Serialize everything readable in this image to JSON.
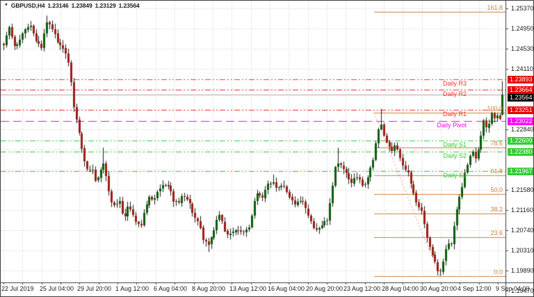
{
  "window": {
    "symbol_period": "GBPUSD,H4",
    "ohlc": {
      "open": "1.23146",
      "high": "1.23849",
      "low": "1.23129",
      "close": "1.23564"
    },
    "dropdown_icon": "▼"
  },
  "colors": {
    "background": "#ffffff",
    "grid": "#cdcdcd",
    "axis_border": "#3c3c3c",
    "axis_text": "#1a1a1a",
    "bull": "#0a5c0a",
    "bear": "#9e1b12",
    "wick": "#1c1c1c",
    "pivot_r": "#ff3232",
    "pivot_p": "#ff00ff",
    "pivot_s": "#32cd32",
    "fib": "#c88440",
    "fib_diagonal": "#f28b8b",
    "price_line": "#a6a6a6",
    "badge_red": "#e60000",
    "badge_magenta": "#ff00ff",
    "badge_green": "#32cd32",
    "badge_black": "#000000"
  },
  "chart_data": {
    "type": "candlestick",
    "symbol": "GBPUSD",
    "timeframe": "H4",
    "last_bar": {
      "open": 1.23146,
      "high": 1.23849,
      "low": 1.23129,
      "close": 1.23564
    },
    "y_axis": {
      "ylim": [
        1.1947,
        1.2537
      ],
      "ticks": [
        {
          "label": "1.25370",
          "price": 1.2537
        },
        {
          "label": "1.24950",
          "price": 1.2495
        },
        {
          "label": "1.24530",
          "price": 1.2453
        },
        {
          "label": "1.24110",
          "price": 1.2411
        },
        {
          "label": "1.22840",
          "price": 1.2284
        },
        {
          "label": "1.21580",
          "price": 1.2158
        },
        {
          "label": "1.21160",
          "price": 1.2116
        },
        {
          "label": "1.20740",
          "price": 1.2074
        },
        {
          "label": "1.20310",
          "price": 1.2031
        },
        {
          "label": "1.19890",
          "price": 1.1989
        },
        {
          "label": "1.19470",
          "price": 1.1947
        }
      ],
      "grid_prices": [
        1.2537,
        1.2495,
        1.2453,
        1.2411,
        1.2369,
        1.2327,
        1.2284,
        1.2242,
        1.22,
        1.2158,
        1.2116,
        1.2074,
        1.2031,
        1.1989,
        1.1947
      ]
    },
    "x_axis": {
      "labels": [
        "22 Jul 2019",
        "25 Jul 04:00",
        "29 Jul 20:00",
        "1 Aug 12:00",
        "6 Aug 04:00",
        "8 Aug 20:00",
        "13 Aug 12:00",
        "16 Aug 04:00",
        "20 Aug 20:00",
        "23 Aug 12:00",
        "28 Aug 04:00",
        "30 Aug 20:00",
        "4 Sep 12:00",
        "9 Sep 04:00"
      ],
      "grid_on": true
    },
    "badges": [
      {
        "text": "1.23893",
        "price": 1.23893,
        "color_key": "badge_red"
      },
      {
        "text": "1.23664",
        "price": 1.23664,
        "color_key": "badge_red"
      },
      {
        "text": "1.23564",
        "price": 1.23564,
        "color_key": "badge_black",
        "role": "last-price"
      },
      {
        "text": "1.23251",
        "price": 1.23251,
        "color_key": "badge_red"
      },
      {
        "text": "1.23022",
        "price": 1.23022,
        "color_key": "badge_magenta"
      },
      {
        "text": "1.22609",
        "price": 1.22609,
        "color_key": "badge_green"
      },
      {
        "text": "1.22380",
        "price": 1.2238,
        "color_key": "badge_green"
      },
      {
        "text": "1.21967",
        "price": 1.21967,
        "color_key": "badge_green"
      }
    ],
    "levels": {
      "pivots": [
        {
          "label": "Daily R3",
          "price": 1.23893,
          "color_key": "pivot_r"
        },
        {
          "label": "Daily R2",
          "price": 1.23664,
          "color_key": "pivot_r"
        },
        {
          "label": "Daily R1",
          "price": 1.23251,
          "color_key": "pivot_r"
        },
        {
          "label": "Daily Pivot",
          "price": 1.23022,
          "color_key": "pivot_p"
        },
        {
          "label": "Daily S1",
          "price": 1.22609,
          "color_key": "pivot_s"
        },
        {
          "label": "Daily S2",
          "price": 1.2238,
          "color_key": "pivot_s"
        },
        {
          "label": "Daily S3",
          "price": 1.21967,
          "color_key": "pivot_s"
        }
      ],
      "price_line": {
        "price": 1.23564
      },
      "fibonacci": {
        "x_start": 537,
        "x_end": 726,
        "anchor_high": {
          "x": 537,
          "price": 1.2319
        },
        "anchor_low": {
          "x": 631,
          "price": 1.1978
        },
        "levels": [
          {
            "label": "161.8",
            "price": 1.25297
          },
          {
            "label": "100.0",
            "price": 1.2319
          },
          {
            "label": "78.6",
            "price": 1.2246
          },
          {
            "label": "61.8",
            "price": 1.21888
          },
          {
            "label": "50.0",
            "price": 1.21485
          },
          {
            "label": "38.2",
            "price": 1.21083
          },
          {
            "label": "23.6",
            "price": 1.20585
          },
          {
            "label": "0.0",
            "price": 1.1978
          }
        ]
      }
    },
    "candles": {
      "count": 186,
      "x_first": 4,
      "x_step": 3.878,
      "noise": 0.0009,
      "seed": 9,
      "close_waypoints": [
        [
          4,
          1.2462
        ],
        [
          12,
          1.2495
        ],
        [
          20,
          1.2452
        ],
        [
          28,
          1.247
        ],
        [
          36,
          1.2498
        ],
        [
          43,
          1.2505
        ],
        [
          50,
          1.2472
        ],
        [
          58,
          1.2455
        ],
        [
          63,
          1.249
        ],
        [
          67,
          1.2512
        ],
        [
          72,
          1.2498
        ],
        [
          78,
          1.2482
        ],
        [
          84,
          1.2462
        ],
        [
          90,
          1.245
        ],
        [
          96,
          1.244
        ],
        [
          101,
          1.238
        ],
        [
          105,
          1.233
        ],
        [
          110,
          1.23
        ],
        [
          116,
          1.2248
        ],
        [
          121,
          1.221
        ],
        [
          126,
          1.219
        ],
        [
          131,
          1.2208
        ],
        [
          137,
          1.2175
        ],
        [
          142,
          1.2195
        ],
        [
          147,
          1.222
        ],
        [
          152,
          1.2178
        ],
        [
          158,
          1.2135
        ],
        [
          164,
          1.212
        ],
        [
          170,
          1.214
        ],
        [
          176,
          1.2098
        ],
        [
          182,
          1.212
        ],
        [
          188,
          1.2112
        ],
        [
          194,
          1.2092
        ],
        [
          200,
          1.2078
        ],
        [
          206,
          1.211
        ],
        [
          212,
          1.2142
        ],
        [
          218,
          1.2135
        ],
        [
          224,
          1.2152
        ],
        [
          230,
          1.2165
        ],
        [
          237,
          1.2172
        ],
        [
          244,
          1.2158
        ],
        [
          250,
          1.2128
        ],
        [
          256,
          1.2135
        ],
        [
          262,
          1.2148
        ],
        [
          268,
          1.2135
        ],
        [
          274,
          1.2118
        ],
        [
          280,
          1.21
        ],
        [
          286,
          1.2082
        ],
        [
          292,
          1.2052
        ],
        [
          298,
          1.2043
        ],
        [
          304,
          1.206
        ],
        [
          310,
          1.2092
        ],
        [
          316,
          1.2105
        ],
        [
          322,
          1.207
        ],
        [
          328,
          1.2058
        ],
        [
          334,
          1.2072
        ],
        [
          340,
          1.2078
        ],
        [
          346,
          1.2068
        ],
        [
          352,
          1.2075
        ],
        [
          358,
          1.2085
        ],
        [
          364,
          1.213
        ],
        [
          369,
          1.2152
        ],
        [
          375,
          1.214
        ],
        [
          381,
          1.2158
        ],
        [
          387,
          1.2175
        ],
        [
          393,
          1.217
        ],
        [
          399,
          1.2162
        ],
        [
          405,
          1.2172
        ],
        [
          411,
          1.2155
        ],
        [
          417,
          1.2135
        ],
        [
          423,
          1.2126
        ],
        [
          429,
          1.214
        ],
        [
          435,
          1.2132
        ],
        [
          441,
          1.211
        ],
        [
          447,
          1.2088
        ],
        [
          452,
          1.2072
        ],
        [
          458,
          1.208
        ],
        [
          464,
          1.2085
        ],
        [
          470,
          1.2095
        ],
        [
          476,
          1.216
        ],
        [
          481,
          1.2205
        ],
        [
          486,
          1.2218
        ],
        [
          492,
          1.22
        ],
        [
          498,
          1.2192
        ],
        [
          504,
          1.217
        ],
        [
          510,
          1.2182
        ],
        [
          516,
          1.2178
        ],
        [
          522,
          1.2164
        ],
        [
          528,
          1.2188
        ],
        [
          534,
          1.221
        ],
        [
          540,
          1.2258
        ],
        [
          545,
          1.2302
        ],
        [
          550,
          1.2272
        ],
        [
          556,
          1.225
        ],
        [
          562,
          1.224
        ],
        [
          568,
          1.2256
        ],
        [
          574,
          1.2224
        ],
        [
          580,
          1.2204
        ],
        [
          586,
          1.2192
        ],
        [
          592,
          1.2155
        ],
        [
          598,
          1.2128
        ],
        [
          604,
          1.212
        ],
        [
          610,
          1.2075
        ],
        [
          615,
          1.205
        ],
        [
          620,
          1.2028
        ],
        [
          625,
          1.2
        ],
        [
          630,
          1.1988
        ],
        [
          634,
          1.1992
        ],
        [
          638,
          1.2024
        ],
        [
          642,
          1.2052
        ],
        [
          646,
          1.2038
        ],
        [
          650,
          1.206
        ],
        [
          654,
          1.2105
        ],
        [
          658,
          1.213
        ],
        [
          662,
          1.2155
        ],
        [
          666,
          1.219
        ],
        [
          670,
          1.2205
        ],
        [
          674,
          1.2222
        ],
        [
          678,
          1.2245
        ],
        [
          682,
          1.2218
        ],
        [
          686,
          1.224
        ],
        [
          690,
          1.2268
        ],
        [
          694,
          1.23
        ],
        [
          698,
          1.2288
        ],
        [
          702,
          1.23
        ],
        [
          706,
          1.2315
        ],
        [
          710,
          1.2302
        ],
        [
          714,
          1.231
        ],
        [
          718,
          1.2306
        ]
      ],
      "overrides": [
        {
          "x": 67,
          "high": 1.2522
        },
        {
          "x": 146,
          "high": 1.2246
        },
        {
          "x": 298,
          "low": 1.2028
        },
        {
          "x": 390,
          "high": 1.219
        },
        {
          "x": 484,
          "high": 1.2246
        },
        {
          "x": 545,
          "high": 1.2327
        },
        {
          "x": 631,
          "low": 1.1978
        },
        {
          "x": 722,
          "open": 1.23146,
          "high": 1.23849,
          "low": 1.23129,
          "close": 1.23564
        }
      ]
    }
  }
}
